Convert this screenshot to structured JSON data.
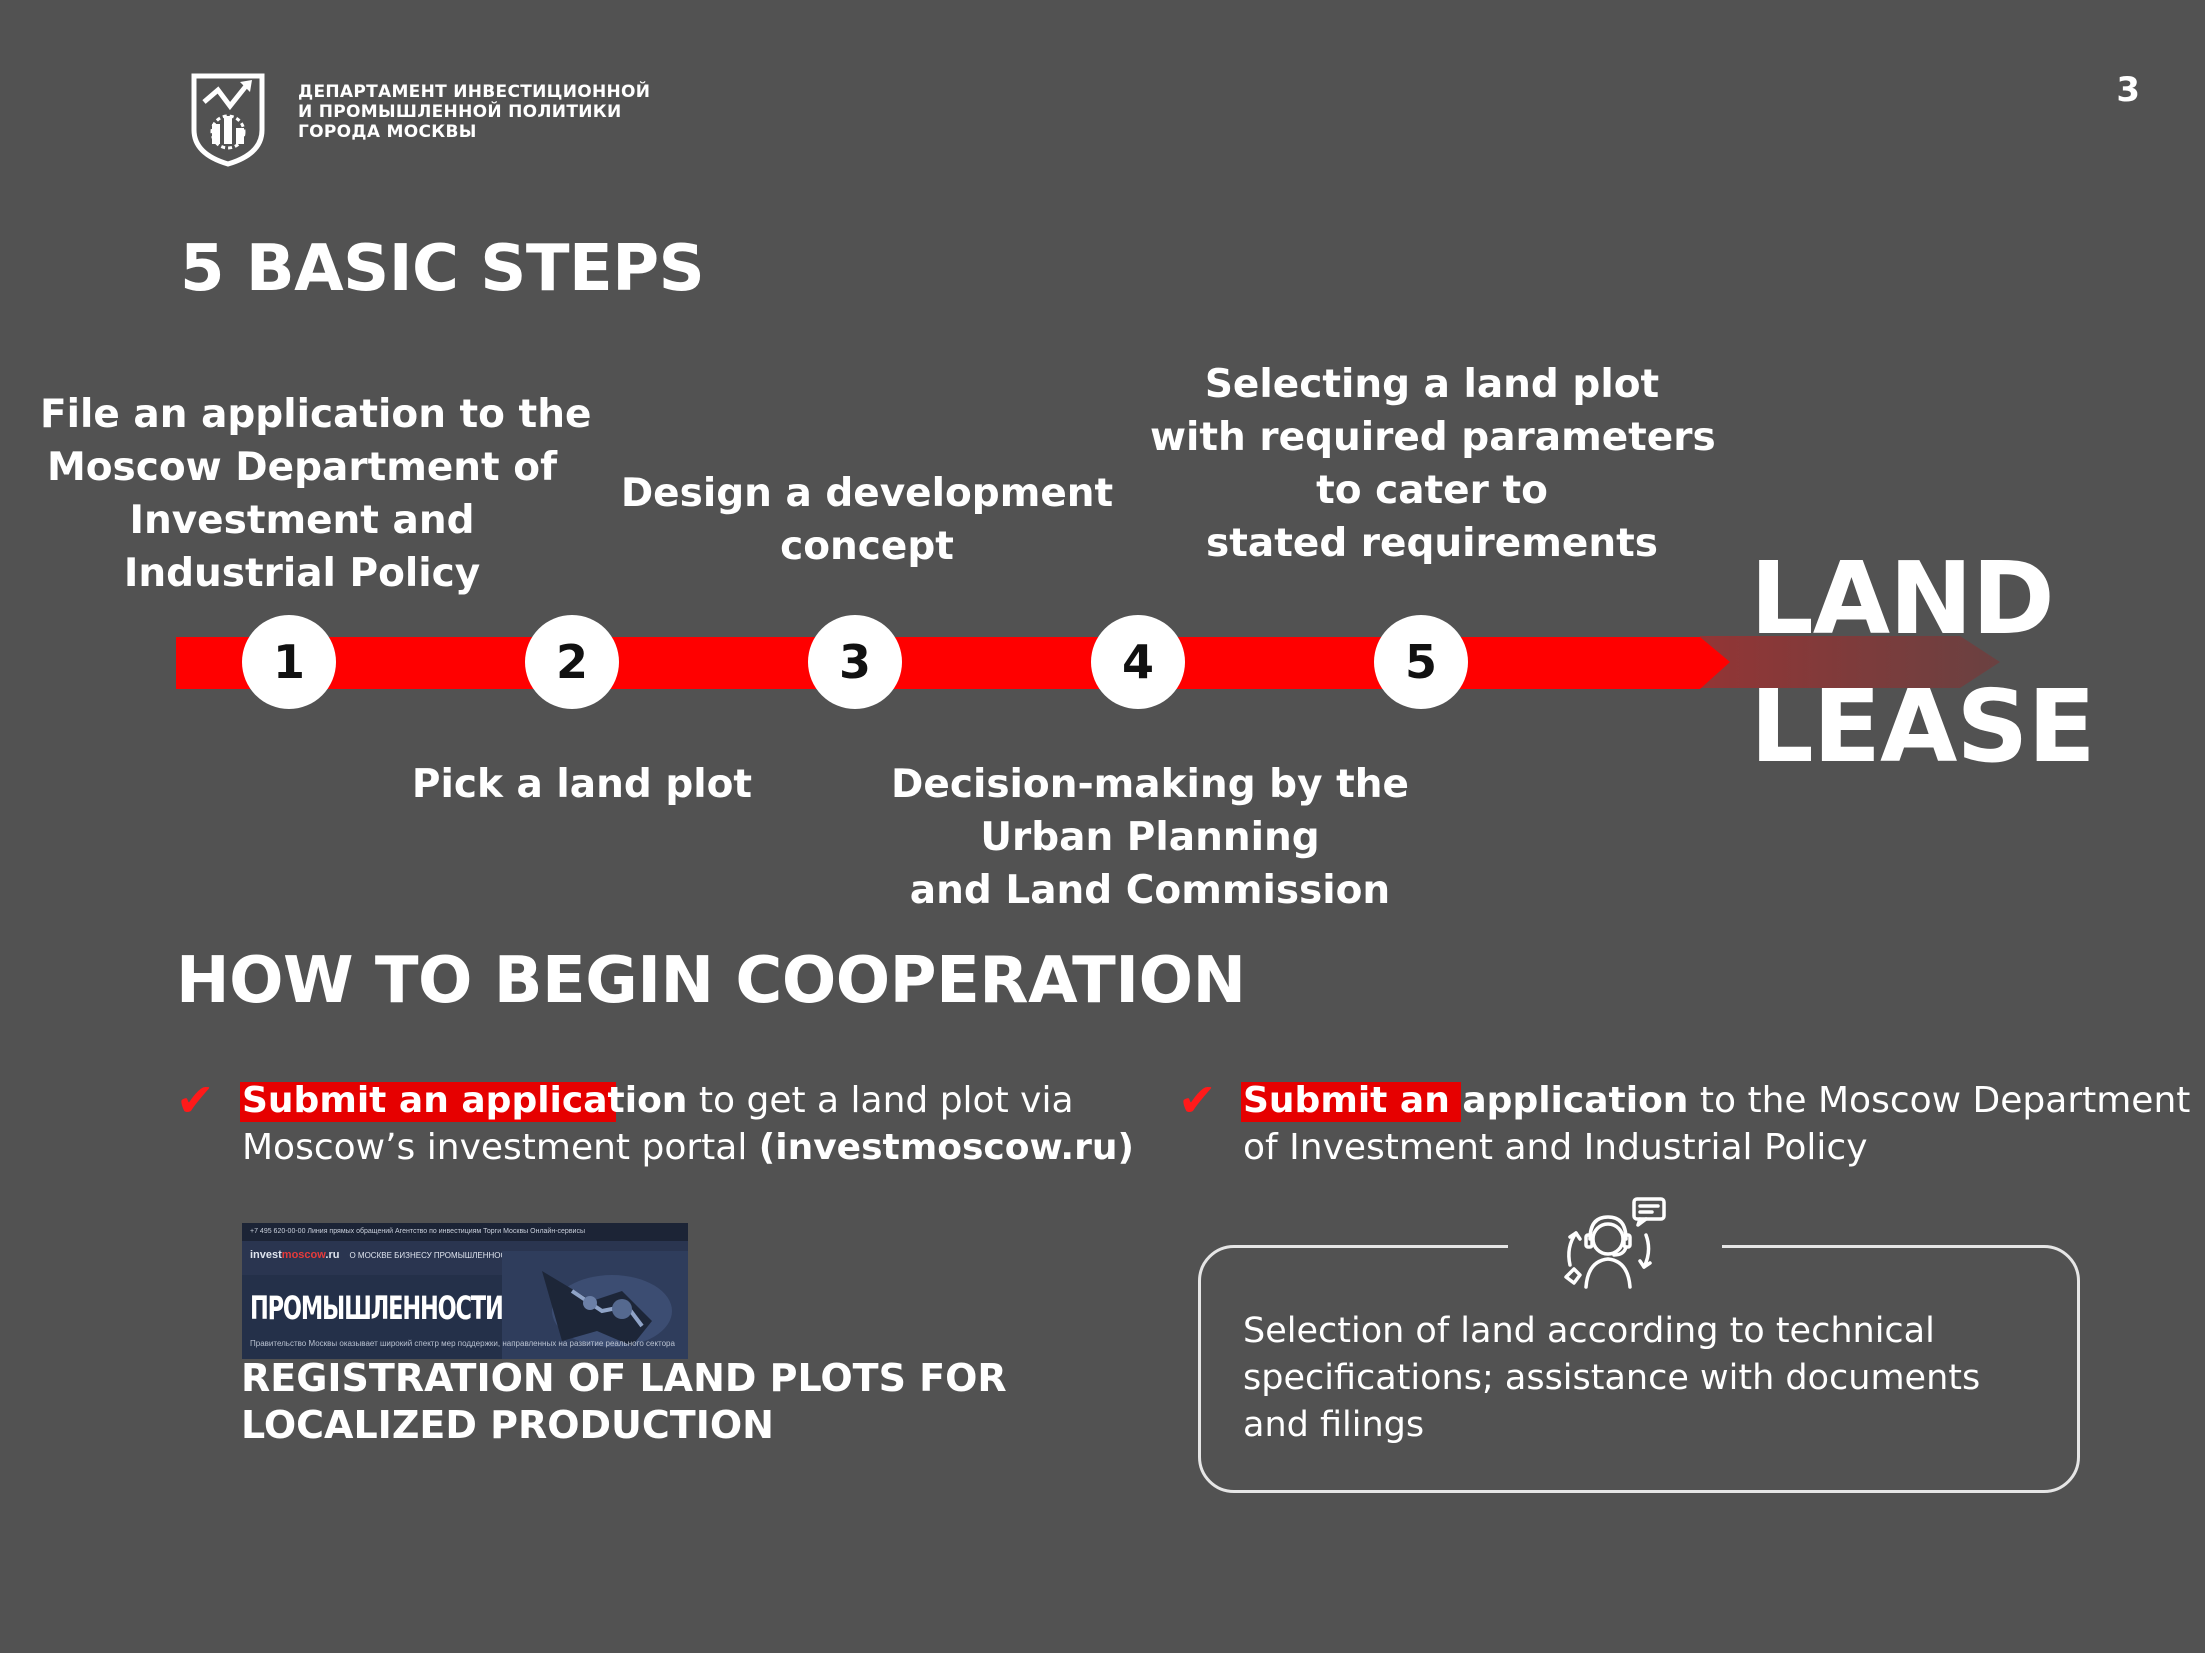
{
  "header": {
    "org_lines": [
      "ДЕПАРТАМЕНТ ИНВЕСТИЦИОННОЙ",
      "И ПРОМЫШЛЕННОЙ ПОЛИТИКИ",
      "ГОРОДА МОСКВЫ"
    ],
    "logo_icon": "moscow-department-emblem-icon",
    "page_number": "3"
  },
  "steps_section": {
    "title": "5 BASIC STEPS",
    "steps": [
      {
        "number": "1",
        "lines": [
          "File an application to the",
          "Moscow Department of",
          "Investment and",
          "Industrial Policy"
        ]
      },
      {
        "number": "2",
        "lines": [
          "Pick a land plot"
        ]
      },
      {
        "number": "3",
        "lines": [
          "Design a development",
          "concept"
        ]
      },
      {
        "number": "4",
        "lines": [
          "Decision-making by the",
          "Urban Planning",
          "and Land Commission"
        ]
      },
      {
        "number": "5",
        "lines": [
          "Selecting a land plot",
          "with required parameters",
          "to cater to",
          "stated requirements"
        ]
      }
    ],
    "outcome_lines": [
      "LAND",
      "LEASE"
    ],
    "colors": {
      "track": "#ff0000",
      "arrow_tail": "#7a3a3a",
      "circle": "#ffffff"
    }
  },
  "cooperation_section": {
    "title": "HOW TO BEGIN COOPERATION",
    "check_icon": "red-checkmark-icon",
    "left": {
      "highlight": "Submit an application",
      "line1_rest": " to get a land plot via",
      "line2_plain": "Moscow’s investment portal ",
      "line2_bold": "(investmoscow.ru)",
      "screenshot": {
        "topbar": "+7 495 620-00-00    Линия прямых обращений    Агентство по инвестициям    Торги Москвы    Онлайн-сервисы",
        "brand_a": "invest",
        "brand_b": "moscow",
        "brand_c": ".ru",
        "nav": "О МОСКВЕ    БИЗНЕСУ    ПРОМЫШЛЕННОСТИ    ИМУЩЕСТВО ОТ ГОРОДА    ПРЕСС-ЦЕНТР",
        "hero": "ПРОМЫШЛЕННОСТИ",
        "sub": "Правительство Москвы оказывает широкий спектр мер поддержки, направленных на развитие реального сектора"
      },
      "caption_lines": [
        "REGISTRATION OF LAND PLOTS FOR",
        "LOCALIZED PRODUCTION"
      ]
    },
    "right": {
      "highlight": "Submit an application",
      "line1_rest": " to the Moscow Department",
      "line2": "of Investment and Industrial Policy",
      "icon": "support-operator-icon",
      "box_lines": [
        "Selection of land according to technical",
        "specifications; assistance with documents",
        "and filings"
      ]
    },
    "colors": {
      "highlight": "#e60000",
      "check": "#ff1a1a"
    }
  }
}
